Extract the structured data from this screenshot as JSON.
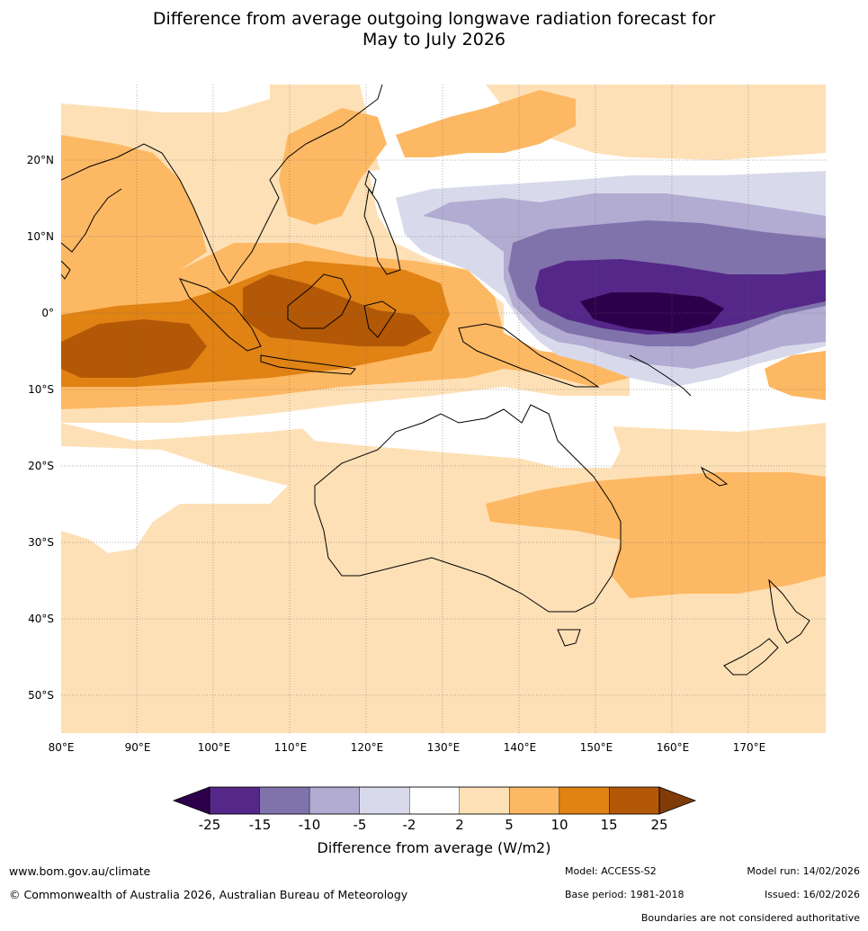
{
  "title": {
    "line1": "Difference from average outgoing longwave radiation forecast for",
    "line2": "May to July 2026"
  },
  "map": {
    "lat_labels": [
      "20°N",
      "10°N",
      "0°",
      "10°S",
      "20°S",
      "30°S",
      "40°S",
      "50°S"
    ],
    "lon_labels": [
      "80°E",
      "90°E",
      "100°E",
      "110°E",
      "120°E",
      "130°E",
      "140°E",
      "150°E",
      "160°E",
      "170°E"
    ],
    "colors": {
      "purple_25": "#2d004b",
      "purple_15": "#542788",
      "purple_10": "#8073ac",
      "purple_5": "#b2abd2",
      "purple_2": "#d8daeb",
      "white": "#ffffff",
      "orange_2": "#fee0b6",
      "orange_5": "#fdb863",
      "orange_10": "#e08214",
      "orange_15": "#b35806",
      "orange_25": "#7f3b08"
    }
  },
  "colorbar": {
    "tick_labels": [
      "-25",
      "-15",
      "-10",
      "-5",
      "-2",
      "2",
      "5",
      "10",
      "15",
      "25"
    ],
    "title": "Difference from average (W/m2)",
    "bins": [
      "#542788",
      "#8073ac",
      "#b2abd2",
      "#d8daeb",
      "#ffffff",
      "#fee0b6",
      "#fdb863",
      "#e08214",
      "#b35806"
    ],
    "under_color": "#2d004b",
    "over_color": "#7f3b08"
  },
  "footer": {
    "website": "www.bom.gov.au/climate",
    "copyright": "© Commonwealth of Australia 2026, Australian Bureau of Meteorology",
    "model": "Model: ACCESS-S2",
    "base_period": "Base period: 1981-2018",
    "model_run": "Model run: 14/02/2026",
    "issued": "Issued: 16/02/2026",
    "disclaimer": "Boundaries are not considered authoritative"
  }
}
